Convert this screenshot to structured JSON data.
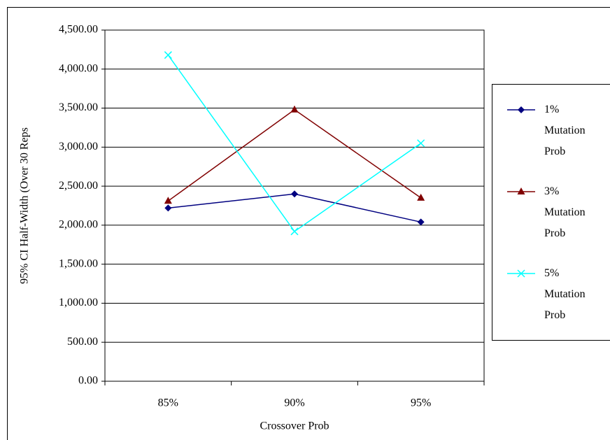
{
  "chart_data": {
    "type": "line",
    "x_label": "Crossover Prob",
    "y_label": "95% CI Half-Width (Over 30 Reps",
    "categories": [
      "85%",
      "90%",
      "95%"
    ],
    "series": [
      {
        "name": "1% Mutation Prob",
        "color": "#000080",
        "marker": "diamond",
        "values": [
          2220,
          2400,
          2040
        ]
      },
      {
        "name": "3% Mutation Prob",
        "color": "#800000",
        "marker": "triangle",
        "values": [
          2310,
          3480,
          2350
        ]
      },
      {
        "name": "5% Mutation Prob",
        "color": "#00FFFF",
        "marker": "x",
        "values": [
          4180,
          1920,
          3050
        ]
      }
    ],
    "ylim": [
      0,
      4500
    ],
    "yticks": [
      {
        "value": 0,
        "label": "0.00"
      },
      {
        "value": 500,
        "label": "500.00"
      },
      {
        "value": 1000,
        "label": "1,000.00"
      },
      {
        "value": 1500,
        "label": "1,500.00"
      },
      {
        "value": 2000,
        "label": "2,000.00"
      },
      {
        "value": 2500,
        "label": "2,500.00"
      },
      {
        "value": 3000,
        "label": "3,000.00"
      },
      {
        "value": 3500,
        "label": "3,500.00"
      },
      {
        "value": 4000,
        "label": "4,000.00"
      },
      {
        "value": 4500,
        "label": "4,500.00"
      }
    ],
    "grid": true,
    "legend": "right"
  }
}
